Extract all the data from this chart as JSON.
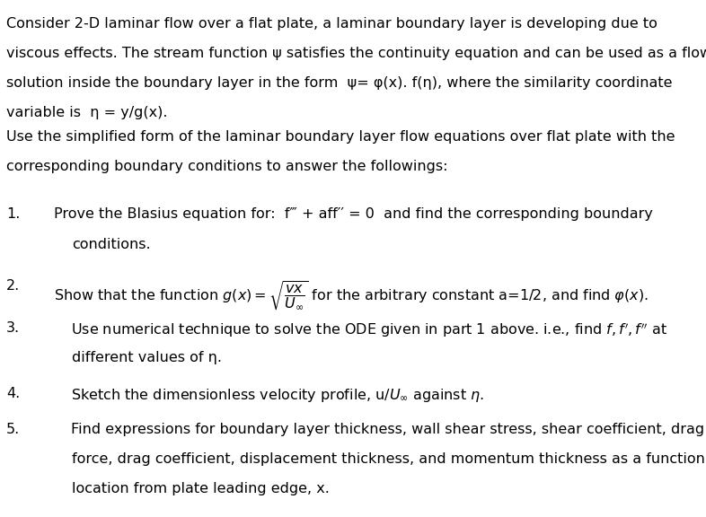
{
  "background_color": "#ffffff",
  "text_color": "#000000",
  "figsize": [
    7.86,
    5.76
  ],
  "dpi": 100,
  "font_family": "DejaVu Sans",
  "para1_line1": "Consider 2-D laminar flow over a flat plate, a laminar boundary layer is developing due to",
  "para1_line2": "viscous effects. The stream function ψ satisfies the continuity equation and can be used as a flow",
  "para1_line3": "solution inside the boundary layer in the form  ψ= φ(x). f(η), where the similarity coordinate",
  "para1_line4": "variable is  η = y/g(x).",
  "para2_line1": "Use the simplified form of the laminar boundary layer flow equations over flat plate with the",
  "para2_line2": "corresponding boundary conditions to answer the followings:",
  "item1_line1": "Prove the Blasius equation for:  f‴ + aff′′ = 0  and find the corresponding boundary",
  "item1_line2": "conditions.",
  "item2": "Show that the function g(x) =",
  "item2b": " for the arbitrary constant a=1/2, and find φ(x).",
  "item3_line1": "Use numerical technique to solve the ODE given in part 1 above. i.e., find f, f′, f′′ at",
  "item3_line2": "different values of η.",
  "item4": "Sketch the dimensionless velocity profile, u/U∞ against η.",
  "item5_line1": "Find expressions for boundary layer thickness, wall shear stress, shear coefficient, drag",
  "item5_line2": "force, drag coefficient, displacement thickness, and momentum thickness as a function of",
  "item5_line3": "location from plate leading edge, x."
}
